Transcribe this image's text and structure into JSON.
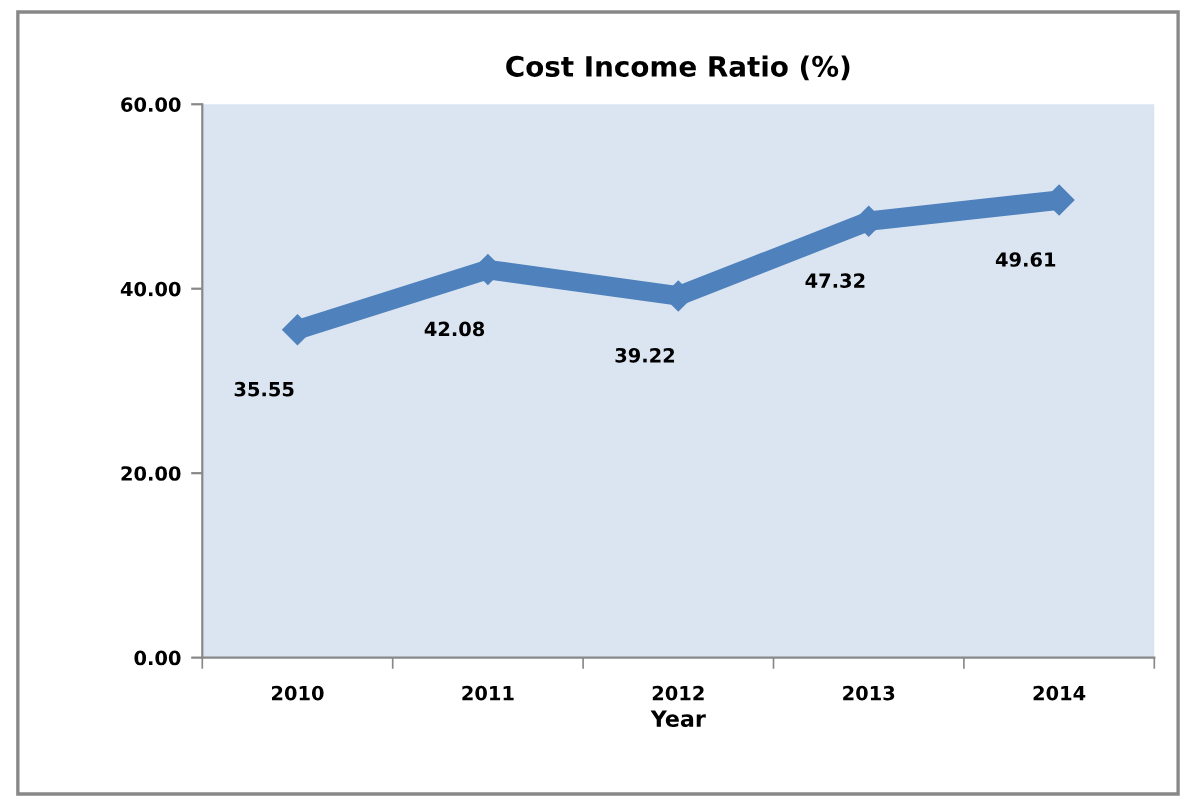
{
  "chart_data": {
    "type": "line",
    "title": "Cost Income Ratio (%)",
    "xlabel": "Year",
    "categories": [
      "2010",
      "2011",
      "2012",
      "2013",
      "2014"
    ],
    "series": [
      {
        "color": "#4f81bd",
        "values": [
          35.55,
          42.08,
          39.22,
          47.32,
          49.61
        ]
      }
    ],
    "value_labels": [
      "35.55",
      "42.08",
      "39.22",
      "47.32",
      "49.61"
    ],
    "ylim": [
      0,
      60
    ],
    "yticks": [
      {
        "value": 0,
        "label": "0.00"
      },
      {
        "value": 20,
        "label": "20.00"
      },
      {
        "value": 40,
        "label": "40.00"
      },
      {
        "value": 60,
        "label": "60.00"
      }
    ],
    "grid": false,
    "legend": false,
    "marker": "diamond",
    "line_style": "solid"
  }
}
